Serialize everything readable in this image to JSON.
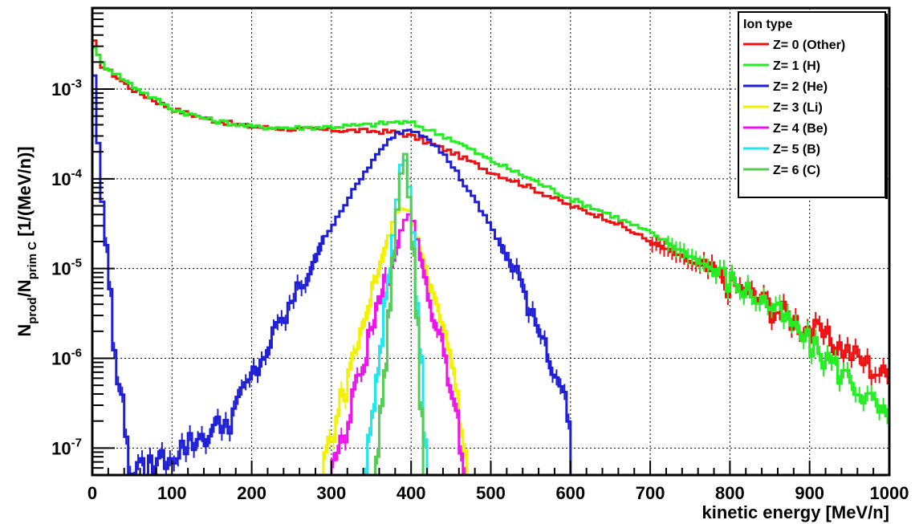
{
  "chart_data": {
    "type": "line",
    "style": "step-histogram",
    "xlabel": "kinetic energy [MeV/n]",
    "ylabel": {
      "prefix": "N",
      "sub1": "prod",
      "slash": "/N",
      "sub2": "prim C",
      "suffix": " [1/(MeV/n)]"
    },
    "xlim": [
      0,
      1000
    ],
    "ylim": [
      5e-08,
      0.008
    ],
    "yscale": "log",
    "grid": true,
    "x_ticks": [
      0,
      100,
      200,
      300,
      400,
      500,
      600,
      700,
      800,
      900,
      1000
    ],
    "x_tick_labels": [
      "0",
      "100",
      "200",
      "300",
      "400",
      "500",
      "600",
      "700",
      "800",
      "900",
      "1000"
    ],
    "y_ticks": [
      1e-07,
      1e-06,
      1e-05,
      0.0001,
      0.001
    ],
    "y_tick_labels": [
      {
        "base": "10",
        "exp": "-7"
      },
      {
        "base": "10",
        "exp": "-6"
      },
      {
        "base": "10",
        "exp": "-5"
      },
      {
        "base": "10",
        "exp": "-4"
      },
      {
        "base": "10",
        "exp": "-3"
      }
    ],
    "legend": {
      "title": "Ion type",
      "position": "top-right",
      "entries": [
        {
          "label": "Z= 0 (Other)",
          "color": "#ee1111"
        },
        {
          "label": "Z= 1 (H)",
          "color": "#22ee22"
        },
        {
          "label": "Z= 2 (He)",
          "color": "#1e1ed6"
        },
        {
          "label": "Z= 3 (Li)",
          "color": "#f2f200"
        },
        {
          "label": "Z= 4 (Be)",
          "color": "#ee11ee"
        },
        {
          "label": "Z= 5 (B)",
          "color": "#22e6ee"
        },
        {
          "label": "Z= 6 (C)",
          "color": "#55cc55"
        }
      ]
    },
    "series": [
      {
        "name": "Z= 0 (Other)",
        "color": "#ee1111",
        "points": [
          [
            0,
            0.004
          ],
          [
            10,
            0.0019
          ],
          [
            25,
            0.0015
          ],
          [
            50,
            0.001
          ],
          [
            100,
            0.0006
          ],
          [
            150,
            0.00045
          ],
          [
            200,
            0.00038
          ],
          [
            250,
            0.00036
          ],
          [
            300,
            0.00035
          ],
          [
            350,
            0.00034
          ],
          [
            380,
            0.00033
          ],
          [
            400,
            0.0003
          ],
          [
            450,
            0.0002
          ],
          [
            500,
            0.00012
          ],
          [
            550,
            8e-05
          ],
          [
            600,
            5e-05
          ],
          [
            650,
            3.5e-05
          ],
          [
            700,
            2e-05
          ],
          [
            750,
            1.2e-05
          ],
          [
            800,
            7e-06
          ],
          [
            850,
            4e-06
          ],
          [
            900,
            2.2e-06
          ],
          [
            950,
            1.2e-06
          ],
          [
            1000,
            6e-07
          ]
        ]
      },
      {
        "name": "Z= 1 (H)",
        "color": "#22ee22",
        "points": [
          [
            0,
            0.0035
          ],
          [
            10,
            0.002
          ],
          [
            25,
            0.0016
          ],
          [
            50,
            0.0011
          ],
          [
            100,
            0.0006
          ],
          [
            150,
            0.00045
          ],
          [
            200,
            0.00038
          ],
          [
            250,
            0.00037
          ],
          [
            300,
            0.00038
          ],
          [
            350,
            0.0004
          ],
          [
            380,
            0.00043
          ],
          [
            400,
            0.00042
          ],
          [
            450,
            0.00028
          ],
          [
            500,
            0.00016
          ],
          [
            550,
            0.0001
          ],
          [
            600,
            6e-05
          ],
          [
            650,
            4e-05
          ],
          [
            700,
            2.5e-05
          ],
          [
            750,
            1.4e-05
          ],
          [
            800,
            7.5e-06
          ],
          [
            850,
            4e-06
          ],
          [
            900,
            1.5e-06
          ],
          [
            950,
            6e-07
          ],
          [
            1000,
            2e-07
          ]
        ]
      },
      {
        "name": "Z= 2 (He)",
        "color": "#1e1ed6",
        "points": [
          [
            0,
            0.0035
          ],
          [
            10,
            0.0001
          ],
          [
            20,
            1e-05
          ],
          [
            30,
            1e-06
          ],
          [
            40,
            2e-07
          ],
          [
            50,
            5e-08
          ],
          [
            170,
            2e-07
          ],
          [
            200,
            6e-07
          ],
          [
            250,
            4e-06
          ],
          [
            300,
            3e-05
          ],
          [
            350,
            0.00015
          ],
          [
            380,
            0.00032
          ],
          [
            400,
            0.00036
          ],
          [
            420,
            0.0003
          ],
          [
            450,
            0.00015
          ],
          [
            500,
            3e-05
          ],
          [
            550,
            4e-06
          ],
          [
            580,
            8e-07
          ],
          [
            600,
            2e-07
          ]
        ]
      },
      {
        "name": "Z= 3 (Li)",
        "color": "#f2f200",
        "points": [
          [
            290,
            7e-08
          ],
          [
            320,
            6e-07
          ],
          [
            350,
            5e-06
          ],
          [
            380,
            4e-05
          ],
          [
            390,
            5e-05
          ],
          [
            400,
            4e-05
          ],
          [
            430,
            4e-06
          ],
          [
            460,
            4e-07
          ],
          [
            470,
            5e-08
          ]
        ]
      },
      {
        "name": "Z= 4 (Be)",
        "color": "#ee11ee",
        "points": [
          [
            300,
            5e-08
          ],
          [
            330,
            4e-07
          ],
          [
            360,
            4e-06
          ],
          [
            390,
            3e-05
          ],
          [
            400,
            4.5e-05
          ],
          [
            420,
            6e-06
          ],
          [
            450,
            6e-07
          ],
          [
            470,
            5e-08
          ]
        ]
      },
      {
        "name": "Z= 5 (B)",
        "color": "#22e6ee",
        "points": [
          [
            340,
            5e-08
          ],
          [
            360,
            8e-07
          ],
          [
            380,
            4e-05
          ],
          [
            390,
            0.00022
          ],
          [
            400,
            6e-05
          ],
          [
            410,
            2e-06
          ],
          [
            420,
            5e-08
          ]
        ]
      },
      {
        "name": "Z= 6 (C)",
        "color": "#55cc55",
        "points": [
          [
            355,
            5e-08
          ],
          [
            370,
            2e-06
          ],
          [
            385,
            8e-05
          ],
          [
            392,
            0.0002
          ],
          [
            400,
            4e-05
          ],
          [
            410,
            1e-06
          ],
          [
            415,
            5e-08
          ]
        ]
      }
    ]
  }
}
